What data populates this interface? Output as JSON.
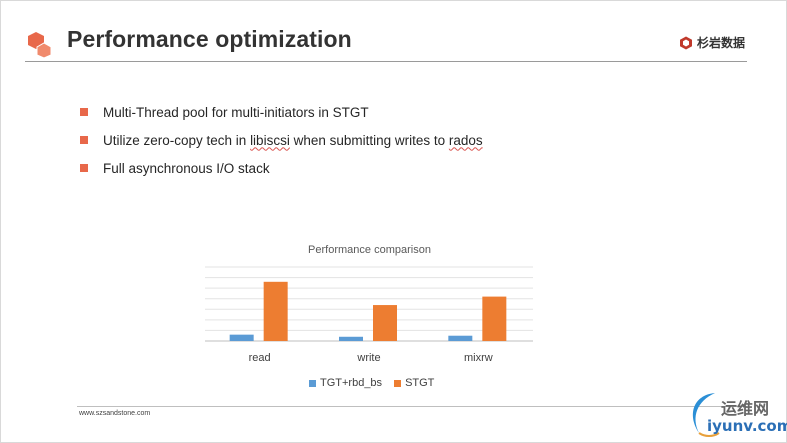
{
  "slide": {
    "title": "Performance optimization",
    "brand_text": "杉岩数据",
    "bullets": [
      {
        "before": "Multi-Thread pool for multi-initiators in STGT",
        "flagged": "",
        "after": ""
      },
      {
        "before": "Utilize zero-copy tech in ",
        "flagged": "libiscsi",
        "after": " when submitting writes to "
      },
      {
        "before": "Full asynchronous I/O stack",
        "flagged": "",
        "after": ""
      }
    ],
    "bullet2_tail": "rados",
    "footer_url": "www.szsandstone.com",
    "watermark_top": "运维网",
    "watermark_bottom": "iyunv.com"
  },
  "colors": {
    "accent": "#e8684a",
    "series_tgt": "#5b9bd5",
    "series_stgt": "#ed7d31"
  },
  "chart_data": {
    "type": "bar",
    "title": "Performance comparison",
    "categories": [
      "read",
      "write",
      "mixrw"
    ],
    "series": [
      {
        "name": "TGT+rbd_bs",
        "values": [
          0.3,
          0.2,
          0.25
        ]
      },
      {
        "name": "STGT",
        "values": [
          2.8,
          1.7,
          2.1
        ]
      }
    ],
    "ylim": [
      0,
      3.5
    ],
    "grid": true,
    "legend": "bottom"
  }
}
